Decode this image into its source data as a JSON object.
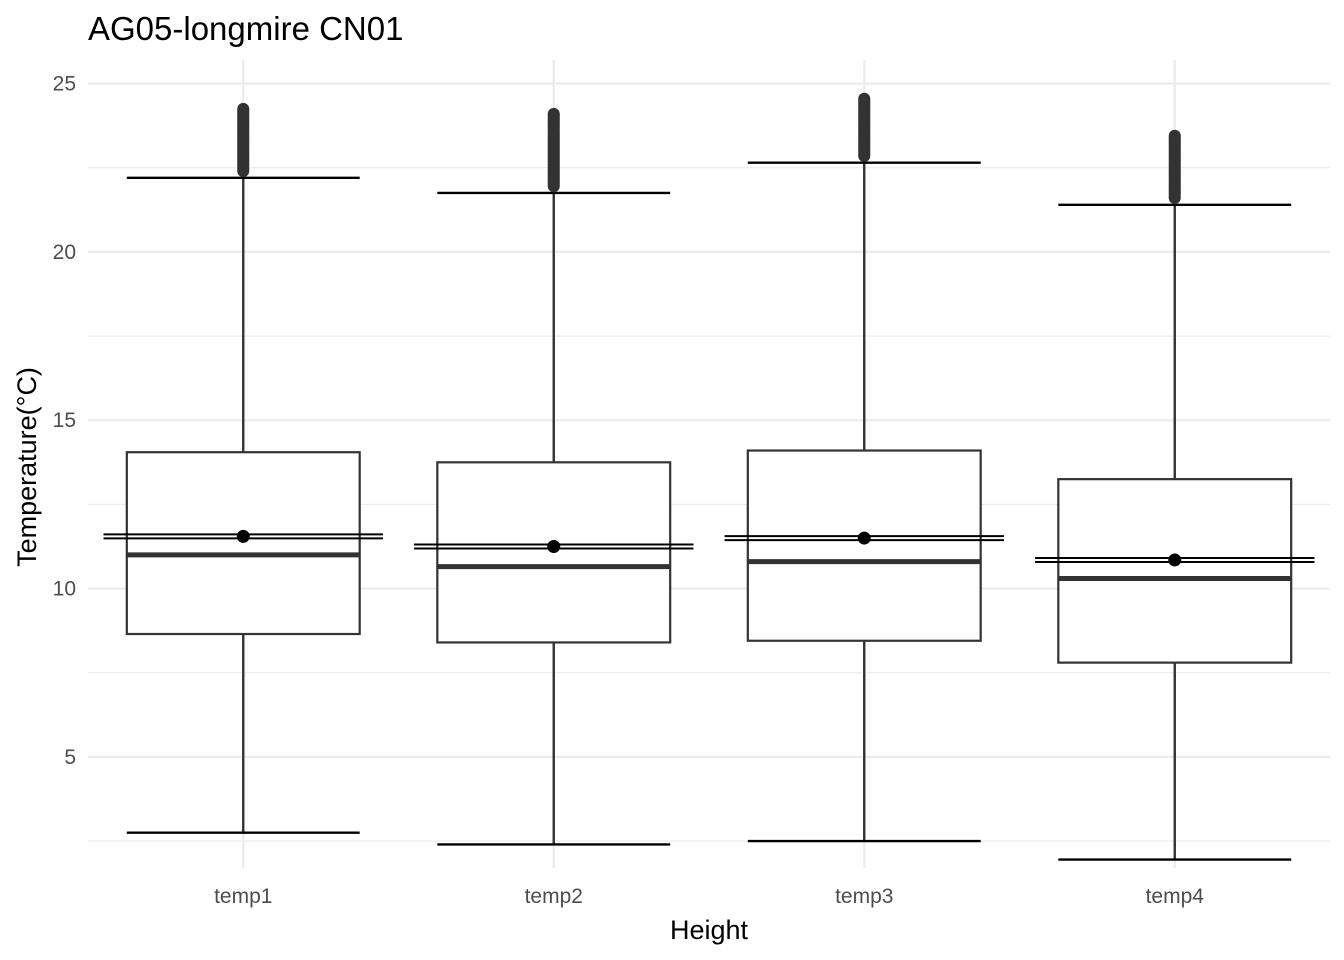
{
  "chart_data": {
    "type": "boxplot",
    "title": "AG05-longmire CN01",
    "xlabel": "Height",
    "ylabel": "Temperature(°C)",
    "ylim": [
      1.7,
      25.7
    ],
    "yticks": [
      5,
      10,
      15,
      20,
      25
    ],
    "grid": true,
    "legend": "none",
    "categories": [
      "temp1",
      "temp2",
      "temp3",
      "temp4"
    ],
    "boxes": [
      {
        "category": "temp1",
        "whisker_low": 2.75,
        "q1": 8.65,
        "median": 11.0,
        "q3": 14.05,
        "whisker_high": 22.2,
        "mean": 11.55,
        "mean_line": 11.55,
        "outliers": [
          22.4,
          22.8,
          23.2,
          23.6,
          24.0,
          24.25
        ]
      },
      {
        "category": "temp2",
        "whisker_low": 2.4,
        "q1": 8.4,
        "median": 10.65,
        "q3": 13.75,
        "whisker_high": 21.75,
        "mean": 11.25,
        "mean_line": 11.25,
        "outliers": [
          21.95,
          22.4,
          22.8,
          23.2,
          23.6,
          24.1
        ]
      },
      {
        "category": "temp3",
        "whisker_low": 2.5,
        "q1": 8.45,
        "median": 10.8,
        "q3": 14.1,
        "whisker_high": 22.65,
        "mean": 11.5,
        "mean_line": 11.5,
        "outliers": [
          22.85,
          23.2,
          23.6,
          24.0,
          24.3,
          24.55
        ]
      },
      {
        "category": "temp4",
        "whisker_low": 1.95,
        "q1": 7.8,
        "median": 10.3,
        "q3": 13.25,
        "whisker_high": 21.4,
        "mean": 10.85,
        "mean_line": 10.85,
        "outliers": [
          21.6,
          22.0,
          22.4,
          22.8,
          23.2,
          23.45
        ]
      }
    ],
    "colors": {
      "box_stroke": "#333333",
      "mean_marker": "#000000",
      "grid": "#ebebeb",
      "background": "#ffffff"
    }
  }
}
